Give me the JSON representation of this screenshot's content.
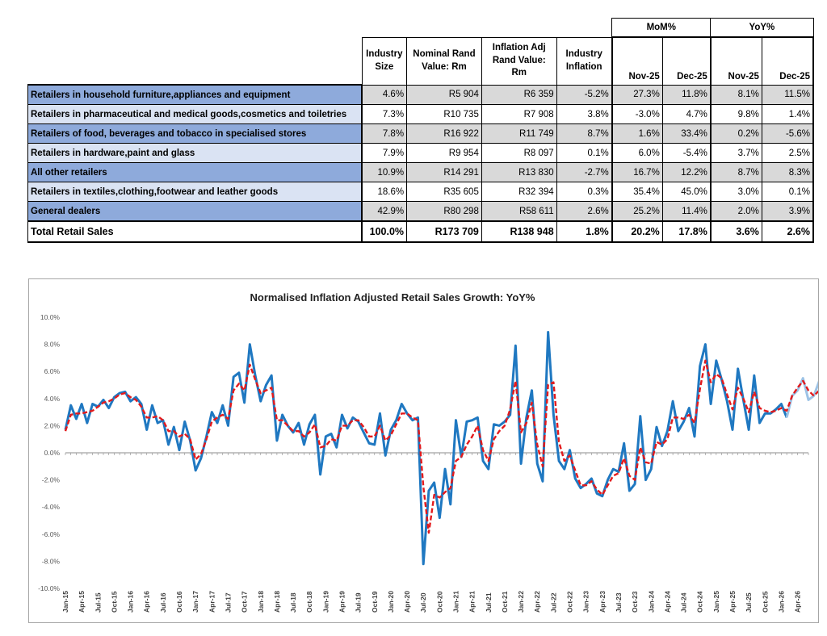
{
  "table": {
    "group_headers": {
      "mom": "MoM%",
      "yoy": "YoY%"
    },
    "headers": [
      "Industry Size",
      "Nominal Rand Value: Rm",
      "Inflation Adj Rand Value: Rm",
      "Industry Inflation",
      "Nov-25",
      "Dec-25",
      "Nov-25",
      "Dec-25"
    ],
    "rows": [
      {
        "name": "Retailers in household furniture,appliances and equipment",
        "shade": true,
        "cells": [
          "4.6%",
          "R5 904",
          "R6 359",
          "-5.2%",
          "27.3%",
          "11.8%",
          "8.1%",
          "11.5%"
        ]
      },
      {
        "name": "Retailers in pharmaceutical and medical goods,cosmetics and toiletries",
        "shade": false,
        "cells": [
          "7.3%",
          "R10 735",
          "R7 908",
          "3.8%",
          "-3.0%",
          "4.7%",
          "9.8%",
          "1.4%"
        ]
      },
      {
        "name": "Retailers of food, beverages and tobacco in specialised stores",
        "shade": true,
        "cells": [
          "7.8%",
          "R16 922",
          "R11 749",
          "8.7%",
          "1.6%",
          "33.4%",
          "0.2%",
          "-5.6%"
        ]
      },
      {
        "name": "Retailers in hardware,paint and glass",
        "shade": false,
        "cells": [
          "7.9%",
          "R9 954",
          "R8 097",
          "0.1%",
          "6.0%",
          "-5.4%",
          "3.7%",
          "2.5%"
        ]
      },
      {
        "name": "All other retailers",
        "shade": true,
        "cells": [
          "10.9%",
          "R14 291",
          "R13 830",
          "-2.7%",
          "16.7%",
          "12.2%",
          "8.7%",
          "8.3%"
        ]
      },
      {
        "name": "Retailers in textiles,clothing,footwear and leather goods",
        "shade": false,
        "cells": [
          "18.6%",
          "R35 605",
          "R32 394",
          "0.3%",
          "35.4%",
          "45.0%",
          "3.0%",
          "0.1%"
        ]
      },
      {
        "name": "General dealers",
        "shade": true,
        "cells": [
          "42.9%",
          "R80 298",
          "R58 611",
          "2.6%",
          "25.2%",
          "11.4%",
          "2.0%",
          "3.9%"
        ]
      }
    ],
    "total": {
      "name": "Total Retail Sales",
      "cells": [
        "100.0%",
        "R173 709",
        "R138 948",
        "1.8%",
        "20.2%",
        "17.8%",
        "3.6%",
        "2.6%"
      ]
    }
  },
  "chart_data": {
    "type": "line",
    "title": "Normalised Inflation Adjusted Retail Sales Growth: YoY%",
    "xlabel": "",
    "ylabel": "",
    "ylim": [
      -10.0,
      10.0
    ],
    "y_ticks": [
      "10.0%",
      "8.0%",
      "6.0%",
      "4.0%",
      "2.0%",
      "0.0%",
      "-2.0%",
      "-4.0%",
      "-6.0%",
      "-8.0%",
      "-10.0%"
    ],
    "y_tick_values": [
      10,
      8,
      6,
      4,
      2,
      0,
      -2,
      -4,
      -6,
      -8,
      -10
    ],
    "x_tick_labels": [
      "Jan-15",
      "Apr-15",
      "Jul-15",
      "Oct-15",
      "Jan-16",
      "Apr-16",
      "Jul-16",
      "Oct-16",
      "Jan-17",
      "Apr-17",
      "Jul-17",
      "Oct-17",
      "Jan-18",
      "Apr-18",
      "Jul-18",
      "Oct-18",
      "Jan-19",
      "Apr-19",
      "Jul-19",
      "Oct-19",
      "Jan-20",
      "Apr-20",
      "Jul-20",
      "Oct-20",
      "Jan-21",
      "Apr-21",
      "Jul-21",
      "Oct-21",
      "Jan-22",
      "Apr-22",
      "Jul-22",
      "Oct-22",
      "Jan-23",
      "Apr-23",
      "Jul-23",
      "Oct-23",
      "Jan-24",
      "Apr-24",
      "Jul-24",
      "Oct-24",
      "Jan-25",
      "Apr-25",
      "Jul-25",
      "Oct-25",
      "Jan-26",
      "Apr-26"
    ],
    "x_start": "Jan-15",
    "grid": false,
    "legend": "none",
    "colors": {
      "actual": "#1f78c1",
      "forecast": "#9dc3e6",
      "trend": "#e31a1c"
    },
    "series": [
      {
        "values": [
          1.7,
          3.5,
          2.5,
          3.6,
          2.2,
          3.6,
          3.4,
          3.9,
          3.3,
          4.1,
          4.4,
          4.5,
          3.8,
          4.1,
          3.6,
          1.7,
          3.5,
          2.2,
          2.4,
          0.6,
          1.9,
          0.2,
          2.3,
          0.9,
          -1.3,
          -0.4,
          1.2,
          3.0,
          2.2,
          3.5,
          2.0,
          5.6,
          5.9,
          3.7,
          8.0,
          5.7,
          3.8,
          5.0,
          5.7,
          0.9,
          2.8,
          2.0,
          1.5,
          2.2,
          0.6,
          2.1,
          2.8,
          -1.6,
          1.2,
          1.4,
          0.4,
          2.8,
          1.8,
          2.6,
          2.3,
          1.5,
          0.7,
          0.6,
          2.9,
          -0.2,
          1.7,
          2.4,
          3.6,
          2.9,
          2.4,
          2.6,
          -8.2,
          -2.8,
          -2.2,
          -4.8,
          -1.2,
          -3.8,
          2.4,
          -0.3,
          2.3,
          2.4,
          2.6,
          -0.6,
          -1.2,
          2.1,
          2.0,
          2.3,
          2.8,
          7.9,
          -0.8,
          2.6,
          4.6,
          -0.8,
          -2.1,
          8.9,
          2.8,
          -0.6,
          -1.2,
          0.2,
          -1.9,
          -2.6,
          -2.3,
          -1.9,
          -3.0,
          -3.2,
          -2.0,
          -1.2,
          -1.4,
          0.7,
          -2.8,
          -2.3,
          2.7,
          -2.0,
          -1.2,
          1.9,
          0.5,
          1.6,
          3.8,
          1.6,
          2.3,
          3.3,
          1.2,
          6.4,
          8.0,
          3.6,
          6.8,
          5.4,
          3.8,
          1.7,
          6.2,
          3.9,
          1.7,
          5.7,
          2.2,
          2.9,
          2.9,
          3.2,
          3.6,
          2.6
        ]
      },
      {
        "values": [
          2.6,
          4.2,
          4.6,
          5.5,
          3.9,
          4.2,
          5.3
        ]
      },
      {
        "values": [
          1.6,
          2.8,
          2.9,
          2.9,
          3.0,
          3.1,
          3.4,
          3.7,
          3.8,
          4.0,
          4.3,
          4.4,
          4.1,
          3.9,
          3.4,
          2.6,
          2.6,
          2.7,
          2.4,
          1.6,
          1.6,
          1.2,
          1.4,
          1.0,
          -0.5,
          -0.1,
          1.0,
          2.3,
          2.6,
          2.8,
          2.5,
          4.6,
          5.1,
          4.6,
          6.5,
          5.4,
          4.4,
          4.6,
          4.8,
          2.4,
          2.4,
          2.0,
          1.6,
          1.6,
          1.2,
          1.5,
          2.1,
          0.4,
          0.5,
          1.0,
          0.9,
          2.0,
          2.0,
          2.4,
          2.4,
          1.9,
          1.2,
          1.2,
          2.0,
          0.9,
          1.3,
          2.1,
          2.9,
          2.9,
          2.6,
          2.4,
          -2.5,
          -5.9,
          -3.1,
          -3.3,
          -2.9,
          -2.6,
          -0.6,
          -0.3,
          0.6,
          1.2,
          2.0,
          0.2,
          -0.6,
          1.0,
          1.6,
          2.0,
          3.2,
          5.3,
          1.5,
          2.2,
          3.7,
          0.6,
          -1.0,
          5.0,
          5.2,
          0.8,
          -0.6,
          -0.2,
          -1.3,
          -2.4,
          -2.4,
          -2.1,
          -2.7,
          -3.1,
          -2.4,
          -1.7,
          -1.5,
          -0.4,
          -1.7,
          -2.0,
          0.4,
          -0.7,
          -0.8,
          0.8,
          0.6,
          1.0,
          2.6,
          2.6,
          2.5,
          2.8,
          2.2,
          4.7,
          6.8,
          5.2,
          5.8,
          5.5,
          4.3,
          3.2,
          4.8,
          4.0,
          3.0,
          4.5,
          3.3,
          3.1,
          3.0,
          3.1,
          3.3,
          3.1,
          4.2,
          4.8,
          5.3,
          4.6,
          4.2,
          4.6
        ]
      }
    ]
  }
}
